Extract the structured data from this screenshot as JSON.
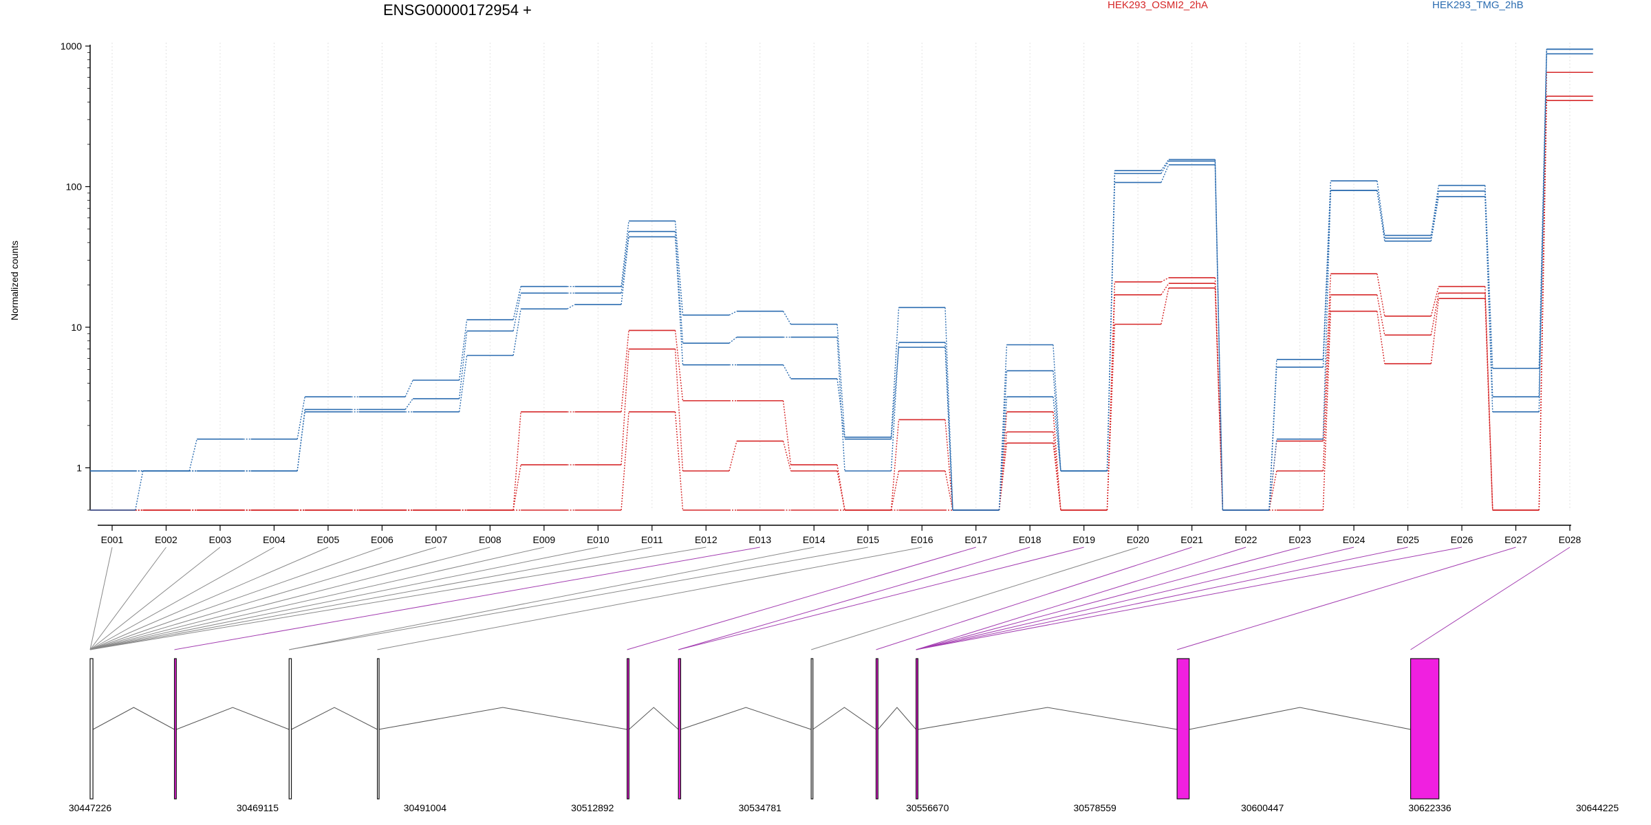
{
  "chart_data": {
    "type": "line",
    "title": "ENSG00000172954 +",
    "ylabel": "Normalized counts",
    "y_scale": "log",
    "ylim": [
      0.5,
      1000
    ],
    "y_ticks": [
      1,
      10,
      100,
      1000
    ],
    "y_tick_labels": [
      "1",
      "10",
      "100",
      "1000"
    ],
    "grid": "vertical dotted lines at exon centers",
    "legend": [
      {
        "name": "HEK293_OSMI2_2hA",
        "color": "#d62728",
        "position": "top-center"
      },
      {
        "name": "HEK293_TMG_2hB",
        "color": "#2b6cb0",
        "position": "top-right"
      }
    ],
    "categories": [
      "E001",
      "E002",
      "E003",
      "E004",
      "E005",
      "E006",
      "E007",
      "E008",
      "E009",
      "E010",
      "E011",
      "E012",
      "E013",
      "E014",
      "E015",
      "E016",
      "E017",
      "E018",
      "E019",
      "E020",
      "E021",
      "E022",
      "E023",
      "E024",
      "E025",
      "E026",
      "E027",
      "E028"
    ],
    "series": [
      {
        "group": "HEK293_OSMI2_2hA",
        "color": "#d62728",
        "values": [
          0.5,
          0.5,
          0.5,
          0.5,
          0.5,
          0.5,
          0.5,
          0.5,
          0.5,
          0.5,
          2.5,
          0.5,
          0.5,
          0.5,
          0.5,
          0.5,
          0.5,
          1.5,
          0.5,
          10.5,
          19,
          0.5,
          0.5,
          13,
          5.5,
          16,
          0.5,
          410
        ]
      },
      {
        "group": "HEK293_OSMI2_2hA",
        "color": "#d62728",
        "values": [
          0.5,
          0.5,
          0.5,
          0.5,
          0.5,
          0.5,
          0.5,
          0.5,
          1.05,
          1.05,
          7,
          0.95,
          1.55,
          0.95,
          0.5,
          0.95,
          0.5,
          1.8,
          0.5,
          17,
          20.5,
          0.5,
          0.95,
          17,
          8.8,
          17.5,
          0.5,
          440
        ]
      },
      {
        "group": "HEK293_OSMI2_2hA",
        "color": "#d62728",
        "values": [
          0.5,
          0.5,
          0.5,
          0.5,
          0.5,
          0.5,
          0.5,
          0.5,
          2.5,
          2.5,
          9.5,
          3,
          3,
          1.05,
          0.5,
          2.2,
          0.5,
          2.5,
          0.5,
          21,
          22.5,
          0.5,
          1.55,
          24,
          12,
          19.5,
          0.5,
          650
        ]
      },
      {
        "group": "HEK293_TMG_2hB",
        "color": "#2b6cb0",
        "values": [
          0.95,
          0.95,
          0.95,
          0.95,
          2.5,
          2.5,
          2.5,
          6.3,
          13.5,
          14.5,
          44,
          5.4,
          5.4,
          4.3,
          1.6,
          7.2,
          0.5,
          3.2,
          0.95,
          107,
          143,
          0.5,
          5.2,
          94,
          41,
          85,
          2.5,
          880
        ]
      },
      {
        "group": "HEK293_TMG_2hB",
        "color": "#2b6cb0",
        "values": [
          0.5,
          0.95,
          0.95,
          0.95,
          2.6,
          2.6,
          3.1,
          9.4,
          17.5,
          17.5,
          48,
          7.7,
          8.5,
          8.5,
          0.95,
          7.8,
          0.5,
          4.9,
          0.95,
          124,
          152,
          0.5,
          1.6,
          94,
          43,
          93,
          3.2,
          950
        ]
      },
      {
        "group": "HEK293_TMG_2hB",
        "color": "#2b6cb0",
        "values": [
          0.95,
          0.95,
          1.6,
          1.6,
          3.2,
          3.2,
          4.2,
          11.3,
          19.5,
          19.5,
          57,
          12.2,
          13,
          10.5,
          1.65,
          13.8,
          0.5,
          7.5,
          0.95,
          130,
          156,
          0.5,
          5.9,
          110,
          45,
          102,
          5.1,
          950
        ]
      }
    ],
    "gene_model": {
      "coordinate_labels": [
        "30447226",
        "30469115",
        "30491004",
        "30512892",
        "30534781",
        "30556670",
        "30578559",
        "30600447",
        "30622336",
        "30644225"
      ],
      "domain": [
        30447226,
        30647000
      ],
      "exons": [
        {
          "start": 30447226,
          "end": 30447600,
          "highlight": false,
          "links": [
            "E001",
            "E002",
            "E003",
            "E004",
            "E005",
            "E006",
            "E007",
            "E008",
            "E009",
            "E010",
            "E011",
            "E012"
          ]
        },
        {
          "start": 30458400,
          "end": 30458650,
          "highlight": true,
          "links": [
            "E013"
          ]
        },
        {
          "start": 30473600,
          "end": 30473900,
          "highlight": false,
          "links": [
            "E014",
            "E015"
          ]
        },
        {
          "start": 30485300,
          "end": 30485450,
          "highlight": false,
          "links": [
            "E016"
          ]
        },
        {
          "start": 30518400,
          "end": 30518650,
          "highlight": true,
          "links": [
            "E017"
          ]
        },
        {
          "start": 30525200,
          "end": 30525500,
          "highlight": true,
          "links": [
            "E018",
            "E019"
          ]
        },
        {
          "start": 30542800,
          "end": 30543000,
          "highlight": false,
          "links": [
            "E020"
          ]
        },
        {
          "start": 30551400,
          "end": 30551650,
          "highlight": true,
          "links": [
            "E021"
          ]
        },
        {
          "start": 30556700,
          "end": 30556950,
          "highlight": true,
          "links": [
            "E022",
            "E023",
            "E024",
            "E025",
            "E026"
          ]
        },
        {
          "start": 30591300,
          "end": 30592900,
          "highlight": true,
          "links": [
            "E027"
          ]
        },
        {
          "start": 30622250,
          "end": 30626000,
          "highlight": true,
          "links": [
            "E028"
          ]
        }
      ],
      "highlight_color": "#f020e0"
    }
  }
}
